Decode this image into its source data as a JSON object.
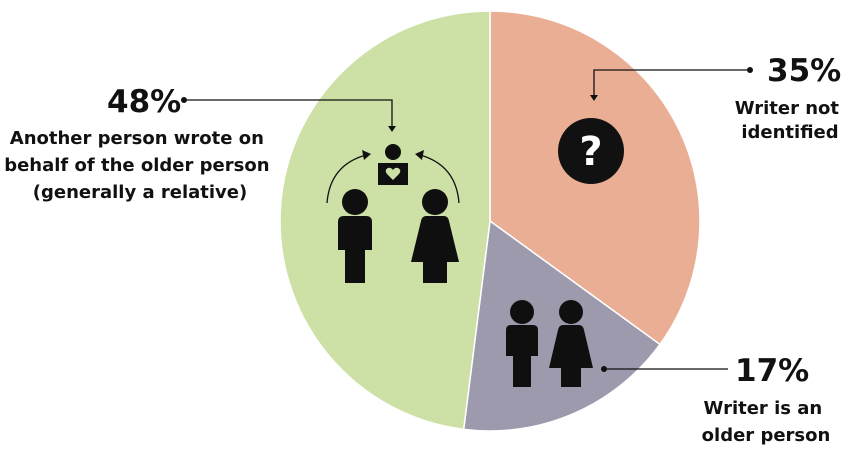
{
  "chart_data": {
    "type": "pie",
    "title": "",
    "slices": [
      {
        "value": 35,
        "label": "35%",
        "description": [
          "Writer not",
          "identified"
        ],
        "color": "#e9ae93",
        "icon": "question-mark-icon"
      },
      {
        "value": 17,
        "label": "17%",
        "description": [
          "Writer is an",
          "older person"
        ],
        "color": "#9d9aae",
        "icon": "older-couple-icon"
      },
      {
        "value": 48,
        "label": "48%",
        "description": [
          "Another person wrote on",
          "behalf of the older person",
          "(generally a relative)"
        ],
        "color": "#cde0a5",
        "icon": "relatives-writing-icon"
      }
    ]
  }
}
